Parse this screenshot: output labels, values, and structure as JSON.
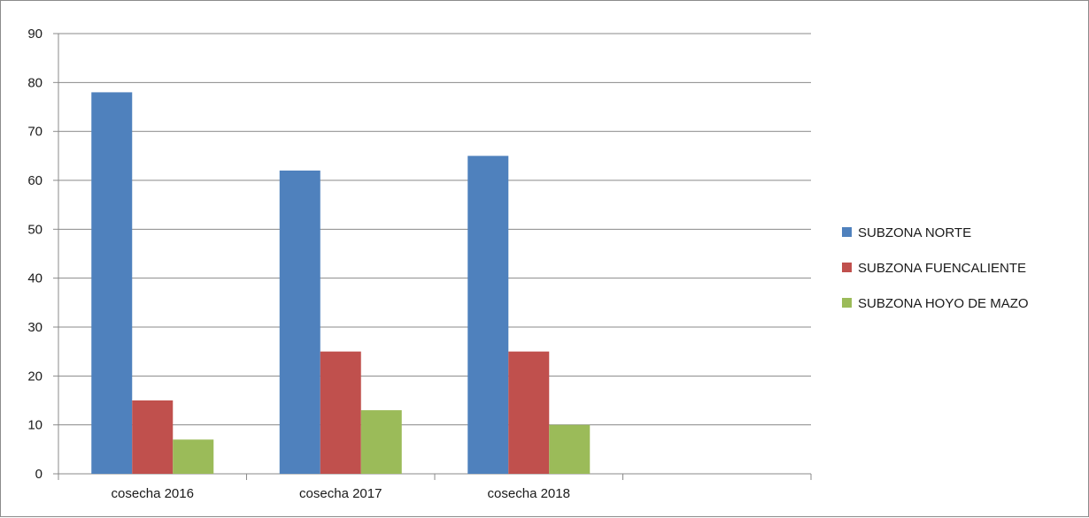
{
  "chart_data": {
    "type": "bar",
    "title": "",
    "xlabel": "",
    "ylabel": "",
    "categories": [
      "cosecha 2016",
      "cosecha 2017",
      "cosecha 2018",
      ""
    ],
    "series": [
      {
        "name": "SUBZONA NORTE",
        "color": "#4f81bd",
        "values": [
          78,
          62,
          65,
          null
        ]
      },
      {
        "name": "SUBZONA FUENCALIENTE",
        "color": "#c0504d",
        "values": [
          15,
          25,
          25,
          null
        ]
      },
      {
        "name": "SUBZONA HOYO DE MAZO",
        "color": "#9bbb59",
        "values": [
          7,
          13,
          10,
          null
        ]
      }
    ],
    "ylim": [
      0,
      90
    ],
    "yticks": [
      0,
      10,
      20,
      30,
      40,
      50,
      60,
      70,
      80,
      90
    ],
    "grid": true,
    "legend_position": "right"
  }
}
